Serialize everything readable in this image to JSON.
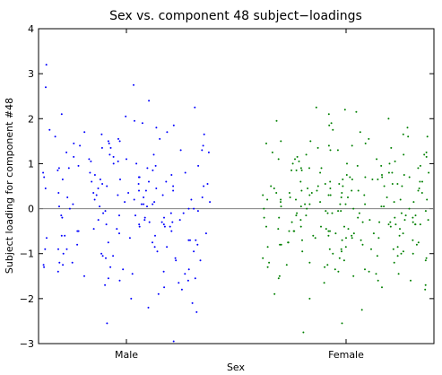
{
  "chart_data": {
    "type": "scatter",
    "title": "Sex vs. component 48 subject−loadings",
    "xlabel": "Sex",
    "ylabel": "Subject loading for component #48",
    "ylim": [
      -3,
      4
    ],
    "yticks": [
      -3,
      -2,
      -1,
      0,
      1,
      2,
      3,
      4
    ],
    "ytick_labels": [
      "−3",
      "−2",
      "−1",
      "0",
      "1",
      "2",
      "3",
      "4"
    ],
    "categories": [
      "Male",
      "Female"
    ],
    "xlim": [
      0.6,
      2.4
    ],
    "reference_line_y": 0,
    "grid": false,
    "colors": {
      "Male": "#0000ff",
      "Female": "#008000",
      "reference_line": "#808080"
    },
    "series": [
      {
        "name": "Male",
        "x_range": [
          0.62,
          1.38
        ],
        "y": [
          3.2,
          2.7,
          2.75,
          2.4,
          2.25,
          2.1,
          2.05,
          1.95,
          1.9,
          1.85,
          1.75,
          1.7,
          1.65,
          1.6,
          1.55,
          1.5,
          1.45,
          1.4,
          1.35,
          1.3,
          1.25,
          1.2,
          1.15,
          1.1,
          1.05,
          1.0,
          0.95,
          0.9,
          0.85,
          0.8,
          0.75,
          0.7,
          0.65,
          0.6,
          0.55,
          0.5,
          0.45,
          0.4,
          0.35,
          0.3,
          0.25,
          0.2,
          0.15,
          0.1,
          0.05,
          0.0,
          -0.05,
          -0.1,
          -0.15,
          -0.2,
          -0.25,
          -0.3,
          -0.35,
          -0.4,
          -0.45,
          -0.5,
          -0.55,
          -0.6,
          -0.65,
          -0.7,
          -0.75,
          -0.8,
          -0.85,
          -0.9,
          -0.95,
          -1.0,
          -1.05,
          -1.1,
          -1.15,
          -1.2,
          -1.25,
          -1.3,
          -1.35,
          -1.4,
          -1.45,
          -1.5,
          -1.55,
          -1.6,
          -1.65,
          -1.7,
          -1.8,
          -1.9,
          -2.0,
          -2.1,
          -2.2,
          -2.3,
          -2.55,
          -2.95,
          1.3,
          0.9,
          0.4,
          -0.2,
          -0.6,
          0.7,
          0.2,
          -0.9,
          1.1,
          0.5,
          -0.4,
          -1.1,
          0.1,
          0.8,
          -0.7,
          1.5,
          -0.3,
          0.3,
          -1.4,
          0.6,
          -0.1,
          1.0,
          -0.5,
          0.0,
          1.2,
          -0.8,
          0.45,
          -0.25,
          0.15,
          -1.25,
          0.85,
          -0.65,
          1.65,
          -0.15,
          0.35,
          -1.55,
          0.55,
          -0.45,
          0.05,
          0.95,
          -0.95,
          1.45,
          -0.35,
          0.25,
          -1.05,
          0.65,
          -0.55,
          0.75,
          -0.75,
          1.05,
          -1.35,
          0.15,
          -0.05,
          1.35,
          -1.15,
          0.5,
          -0.2,
          0.9,
          -0.85,
          0.3,
          -1.45,
          1.25,
          -0.6,
          0.1,
          0.7,
          -0.3,
          1.55,
          -1.6,
          0.4,
          -0.1,
          0.6,
          -1.0,
          0.2,
          1.15,
          -0.4,
          0.8,
          -1.2,
          0.0,
          1.7,
          -0.7,
          0.35,
          0.55,
          -0.15,
          -1.3,
          0.95,
          0.25,
          -0.5,
          1.4,
          -0.9,
          0.45,
          0.1,
          -0.35,
          1.8,
          -1.75,
          0.65,
          0.05,
          -0.25
        ]
      },
      {
        "name": "Female",
        "x_range": [
          1.62,
          2.38
        ],
        "y": [
          2.25,
          2.2,
          2.15,
          2.1,
          2.0,
          1.95,
          1.9,
          1.85,
          1.8,
          1.75,
          1.7,
          1.65,
          1.6,
          1.55,
          1.5,
          1.45,
          1.4,
          1.35,
          1.3,
          1.25,
          1.2,
          1.15,
          1.1,
          1.05,
          1.0,
          0.95,
          0.9,
          0.85,
          0.8,
          0.75,
          0.7,
          0.65,
          0.6,
          0.55,
          0.5,
          0.45,
          0.4,
          0.35,
          0.3,
          0.25,
          0.2,
          0.15,
          0.1,
          0.05,
          0.0,
          -0.05,
          -0.1,
          -0.15,
          -0.2,
          -0.25,
          -0.3,
          -0.35,
          -0.4,
          -0.45,
          -0.5,
          -0.55,
          -0.6,
          -0.65,
          -0.7,
          -0.75,
          -0.8,
          -0.85,
          -0.9,
          -0.95,
          -1.0,
          -1.05,
          -1.1,
          -1.15,
          -1.2,
          -1.25,
          -1.3,
          -1.35,
          -1.4,
          -1.45,
          -1.5,
          -1.55,
          -1.6,
          -1.65,
          -1.7,
          -1.75,
          -1.8,
          -1.9,
          -2.0,
          -2.25,
          -2.55,
          -2.75,
          0.3,
          -0.3,
          0.6,
          -0.6,
          0.1,
          -0.1,
          0.9,
          -0.9,
          0.4,
          -0.4,
          0.2,
          -0.2,
          1.2,
          -1.2,
          0.5,
          -0.5,
          0.0,
          0.7,
          -0.7,
          0.35,
          -0.35,
          1.0,
          -1.0,
          0.15,
          -0.15,
          0.55,
          -0.55,
          0.25,
          -0.25,
          0.8,
          -0.8,
          0.05,
          -0.05,
          1.1,
          -1.1,
          0.45,
          -0.45,
          0.65,
          -0.65,
          1.4,
          -1.4,
          0.3,
          -0.3,
          0.75,
          -0.75,
          0.2,
          -0.2,
          0.95,
          -0.95,
          0.1,
          -0.1,
          0.5,
          -0.5,
          1.3,
          -1.3,
          0.4,
          -0.4,
          0.85,
          -0.85,
          0.0,
          0.6,
          -0.6,
          1.5,
          -1.5,
          0.25,
          -0.25,
          0.7,
          -0.7,
          0.35,
          -0.35,
          1.05,
          -1.05,
          0.15,
          -0.15,
          0.45,
          -0.45,
          0.9,
          -0.9,
          0.55,
          -0.55,
          1.2,
          -1.2,
          0.05,
          -0.05,
          0.65,
          -0.65,
          0.3,
          -0.3,
          1.6,
          -1.6,
          0.8,
          -0.8,
          0.2,
          -0.2,
          0.4,
          -0.4,
          1.0,
          -1.0,
          0.1,
          -0.1,
          0.5,
          -0.5,
          0.75,
          -0.75,
          1.15,
          -1.15,
          0.35,
          -0.35,
          0.6,
          -0.6,
          0.95,
          -0.95,
          0.0,
          0.25,
          -0.25,
          1.35,
          -1.35,
          0.45,
          -0.45,
          0.85,
          -0.85,
          0.15,
          -0.15,
          0.55,
          -0.55,
          1.25,
          -1.25,
          0.7,
          -0.7,
          0.3,
          -0.3,
          1.1,
          -1.1,
          0.05,
          -0.05,
          0.4,
          -0.4,
          0.9,
          -0.9,
          0.2,
          -0.2,
          0.65,
          -0.65,
          1.45,
          -1.45,
          0.5,
          -0.5,
          0.1,
          -0.1,
          0.8,
          -0.8,
          0.35,
          -0.35
        ]
      }
    ]
  }
}
